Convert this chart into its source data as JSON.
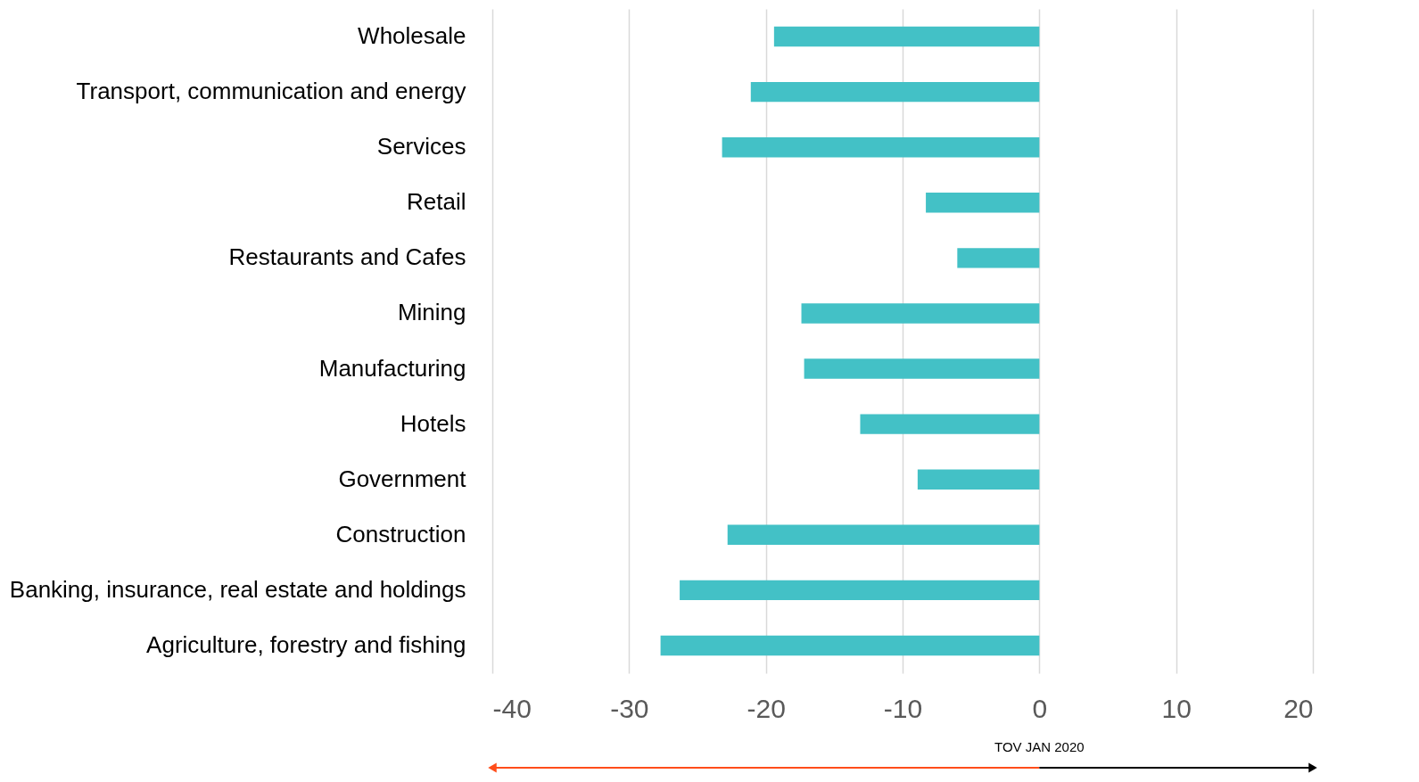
{
  "chart_data": {
    "type": "bar",
    "orientation": "horizontal",
    "categories": [
      "Wholesale",
      "Transport, communication and energy",
      "Services",
      "Retail",
      "Restaurants and Cafes",
      "Mining",
      "Manufacturing",
      "Hotels",
      "Government",
      "Construction",
      "Banking, insurance, real estate and holdings",
      "Agriculture, forestry and fishing"
    ],
    "values": [
      -19.4,
      -21.1,
      -23.2,
      -8.3,
      -6.0,
      -17.4,
      -17.2,
      -13.1,
      -8.9,
      -22.8,
      -26.3,
      -27.7
    ],
    "color": "#43c1c6",
    "xlim": [
      -40,
      20
    ],
    "xticks": [
      -40,
      -30,
      -20,
      -10,
      0,
      10,
      20
    ],
    "grid": "x",
    "annotations": [
      "TOV JAN 2020"
    ]
  }
}
